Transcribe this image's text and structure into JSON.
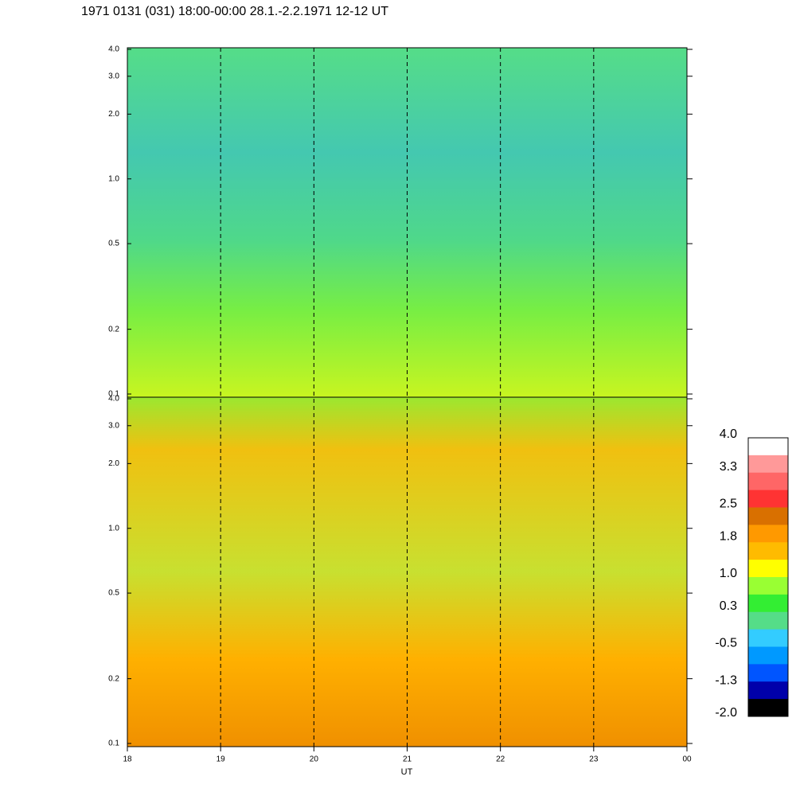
{
  "chart_data": {
    "type": "spectrogram",
    "title": "1971 0131 (031) 18:00-00:00 28.1.-2.2.1971  12-12 UT",
    "xlabel": "UT",
    "xlim": [
      18,
      24
    ],
    "xticks": [
      18,
      19,
      20,
      21,
      22,
      23,
      {
        "value": 24,
        "label": "00"
      }
    ],
    "ylim": [
      0.1,
      4
    ],
    "yticks": [
      0.1,
      0.2,
      0.5,
      {
        "value": 1,
        "label": "1.0"
      },
      {
        "value": 2,
        "label": "2.0"
      },
      {
        "value": 3,
        "label": "3.0"
      },
      {
        "value": 4,
        "label": "4.0"
      }
    ],
    "log_y": true,
    "panels": 2,
    "colorbar": {
      "clim": [
        -2,
        4
      ],
      "ticks": [
        {
          "value": 4,
          "label": "4.0"
        },
        3.3,
        2.5,
        1.8,
        {
          "value": 1,
          "label": "1.0"
        },
        0.3,
        -0.5,
        -1.3,
        {
          "value": -2,
          "label": "-2.0"
        }
      ],
      "colors": [
        "#ffffff",
        "#ff9999",
        "#ff6666",
        "#ff3333",
        "#d97000",
        "#ff9900",
        "#ffbb00",
        "#ffff00",
        "#99ff33",
        "#33ee33",
        "#55dd88",
        "#33ccff",
        "#0099ff",
        "#0055ff",
        "#0000aa",
        "#000000"
      ]
    }
  }
}
